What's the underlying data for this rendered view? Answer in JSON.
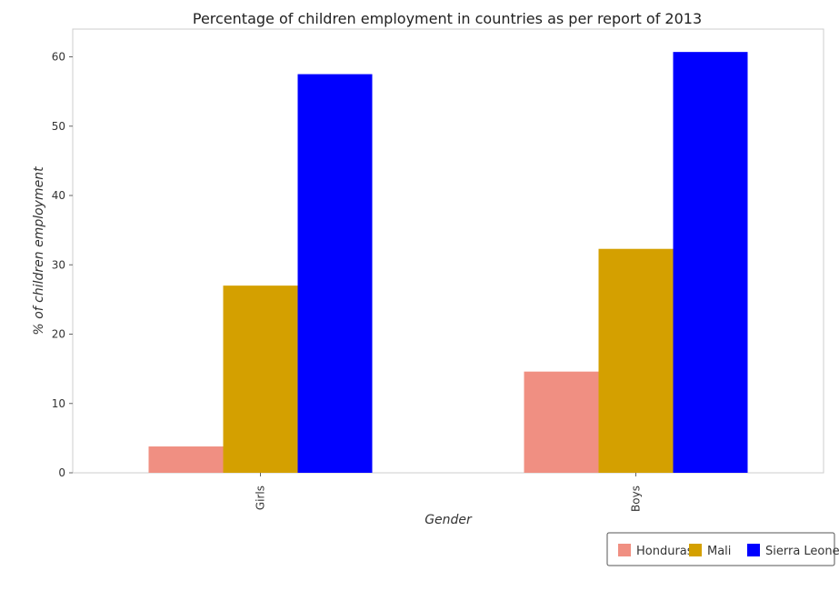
{
  "chart_data": {
    "type": "bar",
    "title": "Percentage of children employment in countries as per report of 2013",
    "xlabel": "Gender",
    "ylabel": "% of children employment",
    "categories": [
      "Girls",
      "Boys"
    ],
    "ylim": [
      0,
      64
    ],
    "yticks": [
      0,
      10,
      20,
      30,
      40,
      50,
      60
    ],
    "grid": false,
    "legend_position": "bottom-right",
    "series": [
      {
        "name": "Honduras",
        "color": "#f08f82",
        "values": [
          3.8,
          14.6
        ]
      },
      {
        "name": "Mali",
        "color": "#d4a000",
        "values": [
          27.0,
          32.3
        ]
      },
      {
        "name": "Sierra Leone",
        "color": "#0000ff",
        "values": [
          57.5,
          60.7
        ]
      }
    ]
  }
}
